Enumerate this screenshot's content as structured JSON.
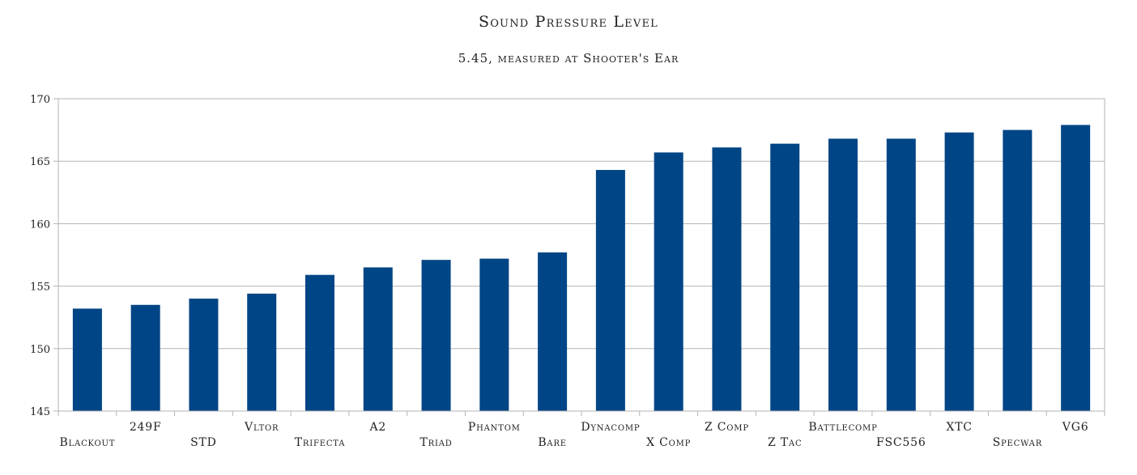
{
  "chart_data": {
    "type": "bar",
    "title": "Sound Pressure Level",
    "subtitle": "5.45, measured at Shooter's Ear",
    "xlabel": "",
    "ylabel": "",
    "ylim": [
      145,
      170
    ],
    "yticks": [
      145,
      150,
      155,
      160,
      165,
      170
    ],
    "grid": true,
    "bar_color": "#004586",
    "categories": [
      "Blackout",
      "249F",
      "STD",
      "Vltor",
      "Trifecta",
      "A2",
      "Triad",
      "Phantom",
      "Bare",
      "Dynacomp",
      "X Comp",
      "Z Comp",
      "Z Tac",
      "Battlecomp",
      "FSC556",
      "XTC",
      "Specwar",
      "VG6"
    ],
    "values": [
      153.2,
      153.5,
      154.0,
      154.4,
      155.9,
      156.5,
      157.1,
      157.2,
      157.7,
      164.3,
      165.7,
      166.1,
      166.4,
      166.8,
      166.8,
      167.3,
      167.5,
      167.9
    ]
  }
}
